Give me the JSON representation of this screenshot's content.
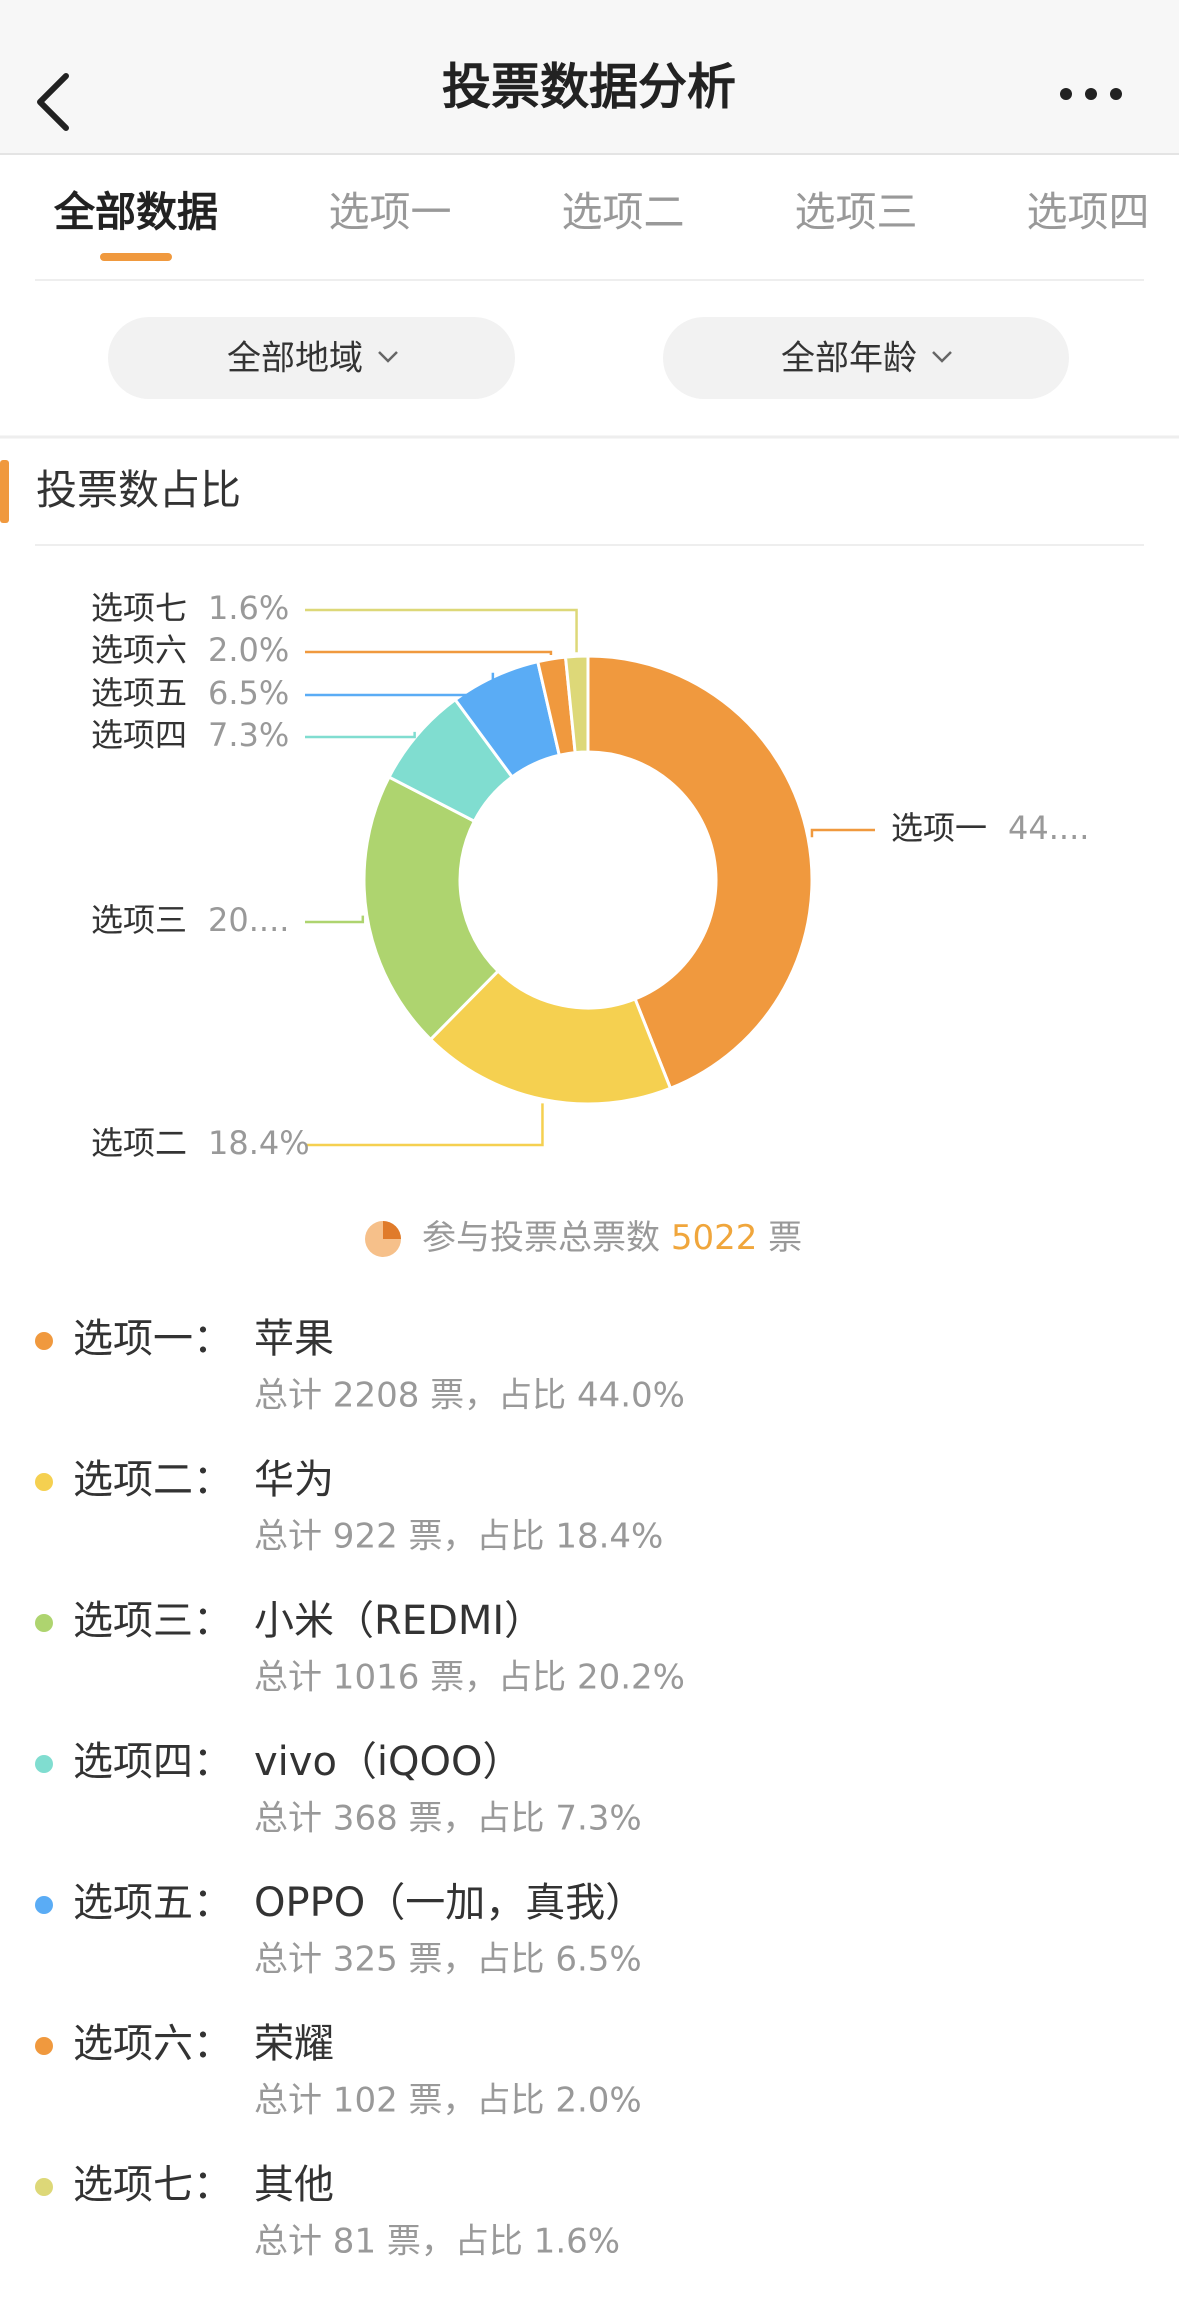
{
  "header": {
    "title": "投票数据分析"
  },
  "tabs": {
    "items": [
      "全部数据",
      "选项一",
      "选项二",
      "选项三",
      "选项四"
    ],
    "active": 0
  },
  "filters": [
    "全部地域",
    "全部年龄"
  ],
  "section": {
    "title": "投票数占比"
  },
  "chart_data": {
    "type": "pie",
    "donut": true,
    "categories": [
      "选项一",
      "选项二",
      "选项三",
      "选项四",
      "选项五",
      "选项六",
      "选项七"
    ],
    "values": [
      44.0,
      18.4,
      20.2,
      7.3,
      6.5,
      2.0,
      1.6
    ],
    "value_labels": [
      "44....",
      "18.4%",
      "20....",
      "7.3%",
      "6.5%",
      "2.0%",
      "1.6%"
    ],
    "colors": [
      "#f0993e",
      "#f5d050",
      "#aed46f",
      "#80ddd0",
      "#5aacf5",
      "#f0993e",
      "#ddd878"
    ]
  },
  "total": {
    "label": "参与投票总票数",
    "value": 5022,
    "unit": "票"
  },
  "options": [
    {
      "label": "选项一：",
      "name": "苹果",
      "detail": "总计 2208 票，占比 44.0%"
    },
    {
      "label": "选项二：",
      "name": "华为",
      "detail": "总计 922 票，占比 18.4%"
    },
    {
      "label": "选项三：",
      "name": "小米（REDMI）",
      "detail": "总计 1016 票，占比 20.2%"
    },
    {
      "label": "选项四：",
      "name": "vivo（iQOO）",
      "detail": "总计 368 票，占比 7.3%"
    },
    {
      "label": "选项五：",
      "name": "OPPO（一加，真我）",
      "detail": "总计 325 票，占比 6.5%"
    },
    {
      "label": "选项六：",
      "name": "荣耀",
      "detail": "总计 102 票，占比 2.0%"
    },
    {
      "label": "选项七：",
      "name": "其他",
      "detail": "总计 81 票，占比 1.6%"
    }
  ]
}
